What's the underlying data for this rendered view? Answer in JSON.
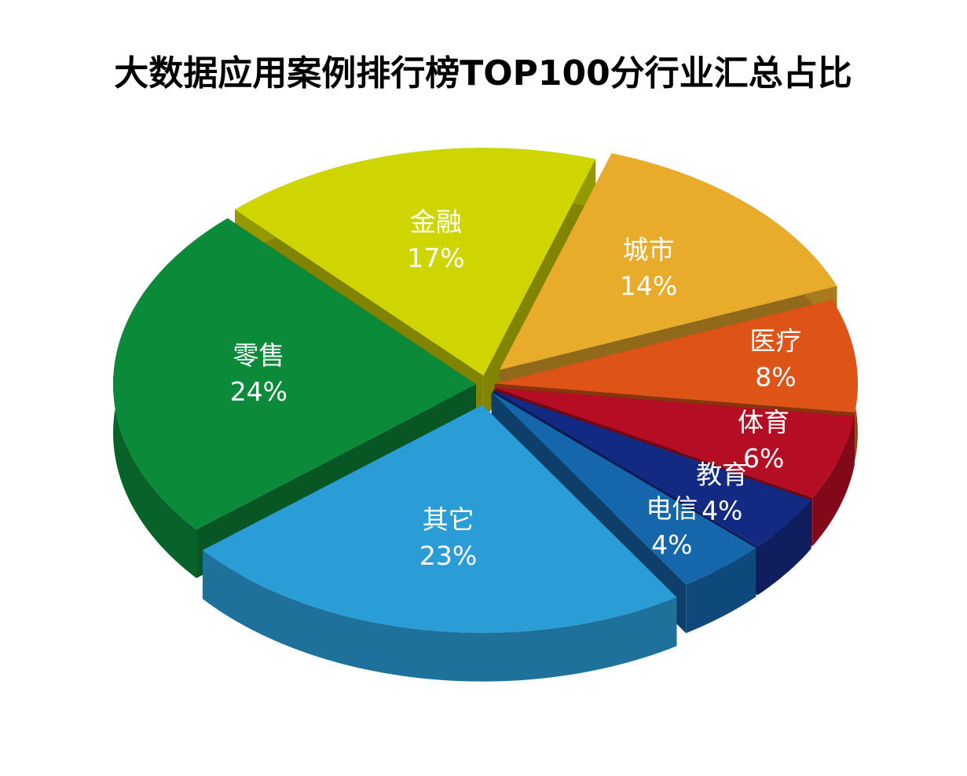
{
  "chart_data": {
    "type": "pie",
    "title": "大数据应用案例排行榜TOP100分行业汇总占比",
    "categories": [
      "城市",
      "医疗",
      "体育",
      "教育",
      "电信",
      "其它",
      "零售",
      "金融"
    ],
    "values": [
      14,
      8,
      6,
      4,
      4,
      23,
      24,
      17
    ],
    "value_labels": [
      "14%",
      "8%",
      "6%",
      "4%",
      "4%",
      "23%",
      "24%",
      "17%"
    ],
    "colors": [
      "#e9ab2a",
      "#dd5416",
      "#b50d24",
      "#132a83",
      "#1566ab",
      "#2a9dd6",
      "#0b8a3a",
      "#cfd500"
    ]
  }
}
